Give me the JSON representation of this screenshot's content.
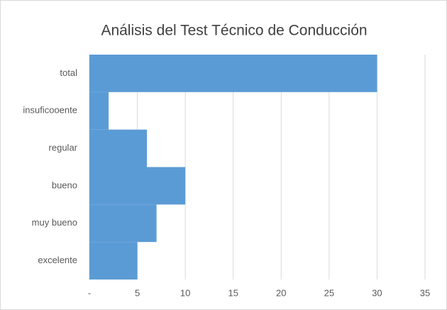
{
  "chart_data": {
    "type": "barh",
    "title": "Análisis del Test Técnico de Conducción",
    "categories": [
      "total",
      "insuficooente",
      "regular",
      "bueno",
      "muy bueno",
      "excelente"
    ],
    "values": [
      30,
      2,
      6,
      10,
      7,
      5
    ],
    "color": "#5b9bd5",
    "xlim": [
      0,
      35
    ],
    "xticks": [
      {
        "value": 0,
        "label": "-"
      },
      5,
      10,
      15,
      20,
      25,
      30,
      35
    ],
    "grid": true
  }
}
